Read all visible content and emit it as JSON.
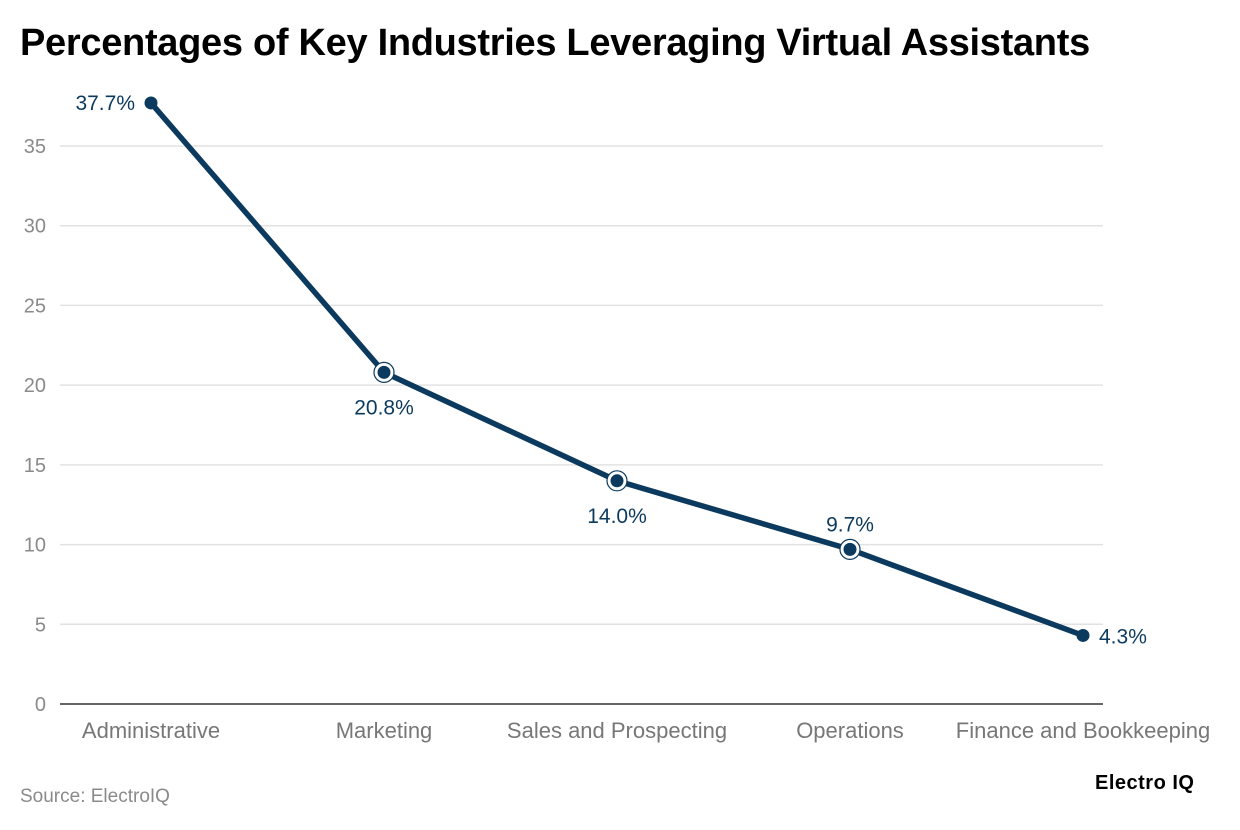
{
  "chart_data": {
    "type": "line",
    "title": "Percentages of Key Industries Leveraging Virtual Assistants",
    "categories": [
      "Administrative",
      "Marketing",
      "Sales and Prospecting",
      "Operations",
      "Finance and Bookkeeping"
    ],
    "series": [
      {
        "name": "Percentage",
        "values": [
          37.7,
          20.8,
          14.0,
          9.7,
          4.3
        ]
      }
    ],
    "data_labels": [
      "37.7%",
      "20.8%",
      "14.0%",
      "9.7%",
      "4.3%"
    ],
    "label_positions": [
      "left",
      "below",
      "below",
      "above",
      "right"
    ],
    "yticks": [
      0,
      5,
      10,
      15,
      20,
      25,
      30,
      35
    ],
    "ylim": [
      0,
      35
    ],
    "xlabel": "",
    "ylabel": "",
    "grid": true,
    "legend": "none",
    "line_color": "#0b3a5e"
  },
  "source": "Source: ElectroIQ",
  "logo": "Electro IQ"
}
